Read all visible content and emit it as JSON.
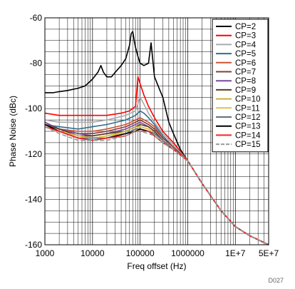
{
  "chart_data": {
    "type": "line",
    "title": "",
    "xlabel": "Freq offset (Hz)",
    "ylabel": "Phase Noise (dBc)",
    "x_scale": "log",
    "xlim": [
      1000,
      50000000
    ],
    "ylim": [
      -160,
      -60
    ],
    "grid": true,
    "legend_position": "top-right",
    "watermark": "D027",
    "x_ticks": [
      {
        "value": 1000,
        "label": "1000"
      },
      {
        "value": 10000,
        "label": "10000"
      },
      {
        "value": 100000,
        "label": "100000"
      },
      {
        "value": 1000000,
        "label": "1000000"
      },
      {
        "value": 10000000,
        "label": "1E+7"
      },
      {
        "value": 50000000,
        "label": "5E+7"
      }
    ],
    "y_ticks": [
      {
        "value": -60,
        "label": "-60"
      },
      {
        "value": -80,
        "label": "-80"
      },
      {
        "value": -100,
        "label": "-100"
      },
      {
        "value": -120,
        "label": "-120"
      },
      {
        "value": -140,
        "label": "-140"
      },
      {
        "value": -160,
        "label": "-160"
      }
    ],
    "series": [
      {
        "name": "CP=2",
        "color": "#000000",
        "dash": "",
        "x": [
          1000,
          1500,
          2000,
          3000,
          5000,
          7000,
          10000,
          13000,
          15000,
          17000,
          20000,
          25000,
          30000,
          40000,
          50000,
          60000,
          65000,
          70000,
          75000,
          80000,
          90000,
          100000,
          120000,
          150000,
          170000,
          200000,
          250000,
          300000,
          400000,
          500000,
          700000,
          1000000,
          2000000,
          5000000,
          10000000,
          20000000,
          50000000
        ],
        "y": [
          -93,
          -93,
          -92.5,
          -92,
          -91,
          -90,
          -87,
          -84,
          -81,
          -84,
          -86,
          -86,
          -84,
          -81,
          -78,
          -72,
          -67,
          -66,
          -70,
          -73,
          -77,
          -80,
          -81,
          -80,
          -71,
          -86,
          -91,
          -95,
          -106,
          -111,
          -118,
          -123,
          -133,
          -145,
          -152,
          -156,
          -160
        ]
      },
      {
        "name": "CP=3",
        "color": "#ff0000",
        "dash": "",
        "x": [
          1000,
          2000,
          5000,
          10000,
          20000,
          40000,
          60000,
          80000,
          90000,
          100000,
          120000,
          150000,
          200000,
          300000,
          500000,
          1000000,
          2000000,
          5000000,
          10000000,
          20000000,
          50000000
        ],
        "y": [
          -102,
          -103,
          -103,
          -103,
          -103,
          -102,
          -101,
          -99,
          -86,
          -89,
          -94,
          -99,
          -104,
          -110,
          -115,
          -123,
          -133,
          -145,
          -152,
          -156,
          -160
        ]
      },
      {
        "name": "CP=4",
        "color": "#aaaaaa",
        "dash": "",
        "x": [
          1000,
          2000,
          5000,
          10000,
          20000,
          50000,
          80000,
          100000,
          120000,
          150000,
          200000,
          300000,
          500000,
          1000000,
          2000000,
          5000000,
          10000000,
          20000000,
          50000000
        ],
        "y": [
          -105,
          -106,
          -106,
          -106,
          -105,
          -103,
          -101,
          -95,
          -98,
          -102,
          -106,
          -111,
          -116,
          -123,
          -133,
          -145,
          -152,
          -156,
          -160
        ]
      },
      {
        "name": "CP=5",
        "color": "#2e6f8f",
        "dash": "",
        "x": [
          1000,
          2000,
          5000,
          10000,
          20000,
          50000,
          80000,
          100000,
          120000,
          150000,
          200000,
          300000,
          500000,
          1000000,
          2000000,
          5000000,
          10000000,
          20000000,
          50000000
        ],
        "y": [
          -107,
          -108,
          -109,
          -108,
          -107,
          -105,
          -103,
          -101,
          -102,
          -104,
          -107,
          -112,
          -117,
          -123,
          -133,
          -145,
          -152,
          -156,
          -160
        ]
      },
      {
        "name": "CP=6",
        "color": "#cc5533",
        "dash": "",
        "x": [
          1000,
          2000,
          5000,
          10000,
          20000,
          50000,
          80000,
          100000,
          150000,
          200000,
          300000,
          500000,
          1000000,
          2000000,
          5000000,
          10000000,
          20000000,
          50000000
        ],
        "y": [
          -106,
          -109,
          -110,
          -110,
          -109,
          -107,
          -105,
          -104,
          -106,
          -108,
          -113,
          -117,
          -123,
          -133,
          -145,
          -152,
          -156,
          -160
        ]
      },
      {
        "name": "CP=7",
        "color": "#8b3a3a",
        "dash": "",
        "x": [
          1000,
          2000,
          5000,
          10000,
          20000,
          50000,
          80000,
          100000,
          150000,
          200000,
          300000,
          500000,
          1000000,
          2000000,
          5000000,
          10000000,
          20000000,
          50000000
        ],
        "y": [
          -106,
          -109,
          -111,
          -111,
          -110,
          -108,
          -106,
          -105,
          -107,
          -109,
          -113,
          -117,
          -123,
          -133,
          -145,
          -152,
          -156,
          -160
        ]
      },
      {
        "name": "CP=8",
        "color": "#7b4a9a",
        "dash": "",
        "x": [
          1000,
          2000,
          5000,
          10000,
          20000,
          50000,
          80000,
          100000,
          150000,
          200000,
          300000,
          500000,
          1000000,
          2000000,
          5000000,
          10000000,
          20000000,
          50000000
        ],
        "y": [
          -106,
          -109,
          -111,
          -112,
          -111,
          -109,
          -107,
          -106,
          -108,
          -110,
          -114,
          -118,
          -123,
          -133,
          -145,
          -152,
          -156,
          -160
        ]
      },
      {
        "name": "CP=9",
        "color": "#5c3d1e",
        "dash": "",
        "x": [
          1000,
          2000,
          5000,
          10000,
          20000,
          50000,
          80000,
          100000,
          150000,
          200000,
          300000,
          500000,
          1000000,
          2000000,
          5000000,
          10000000,
          20000000,
          50000000
        ],
        "y": [
          -107,
          -109,
          -112,
          -112,
          -111,
          -110,
          -108,
          -107,
          -108,
          -110,
          -114,
          -118,
          -123,
          -133,
          -145,
          -152,
          -156,
          -160
        ]
      },
      {
        "name": "CP=10",
        "color": "#c9b037",
        "dash": "",
        "x": [
          1000,
          2000,
          5000,
          10000,
          20000,
          50000,
          80000,
          100000,
          150000,
          200000,
          300000,
          500000,
          1000000,
          2000000,
          5000000,
          10000000,
          20000000,
          50000000
        ],
        "y": [
          -107,
          -110,
          -112,
          -113,
          -112,
          -110,
          -108,
          -108,
          -109,
          -111,
          -114,
          -118,
          -123,
          -133,
          -145,
          -152,
          -156,
          -160
        ]
      },
      {
        "name": "CP=11",
        "color": "#e0c050",
        "dash": "",
        "x": [
          1000,
          2000,
          5000,
          10000,
          20000,
          50000,
          80000,
          100000,
          150000,
          200000,
          300000,
          500000,
          1000000,
          2000000,
          5000000,
          10000000,
          20000000,
          50000000
        ],
        "y": [
          -107,
          -110,
          -112,
          -113,
          -112,
          -111,
          -109,
          -108,
          -109,
          -111,
          -114,
          -118,
          -123,
          -133,
          -145,
          -152,
          -156,
          -160
        ]
      },
      {
        "name": "CP=12",
        "color": "#607080",
        "dash": "",
        "x": [
          1000,
          2000,
          5000,
          10000,
          20000,
          50000,
          80000,
          100000,
          150000,
          200000,
          300000,
          500000,
          1000000,
          2000000,
          5000000,
          10000000,
          20000000,
          50000000
        ],
        "y": [
          -107,
          -110,
          -113,
          -113,
          -113,
          -111,
          -109,
          -109,
          -110,
          -111,
          -114,
          -118,
          -123,
          -133,
          -145,
          -152,
          -156,
          -160
        ]
      },
      {
        "name": "CP=13",
        "color": "#000000",
        "dash": "",
        "x": [
          1000,
          2000,
          5000,
          10000,
          20000,
          50000,
          80000,
          100000,
          150000,
          200000,
          300000,
          500000,
          1000000,
          2000000,
          5000000,
          10000000,
          20000000,
          50000000
        ],
        "y": [
          -107,
          -110,
          -113,
          -114,
          -113,
          -111,
          -110,
          -109,
          -110,
          -112,
          -115,
          -118,
          -123,
          -133,
          -145,
          -152,
          -156,
          -160
        ]
      },
      {
        "name": "CP=14",
        "color": "#ff2222",
        "dash": "",
        "x": [
          1000,
          2000,
          5000,
          10000,
          20000,
          50000,
          80000,
          100000,
          150000,
          200000,
          300000,
          500000,
          1000000,
          2000000,
          5000000,
          10000000,
          20000000,
          50000000
        ],
        "y": [
          -108,
          -110,
          -113,
          -114,
          -113,
          -112,
          -110,
          -110,
          -110,
          -112,
          -115,
          -118,
          -123,
          -133,
          -145,
          -152,
          -156,
          -160
        ]
      },
      {
        "name": "CP=15",
        "color": "#999999",
        "dash": "6,3",
        "x": [
          1000,
          2000,
          5000,
          10000,
          20000,
          50000,
          80000,
          100000,
          150000,
          200000,
          300000,
          500000,
          1000000,
          2000000,
          5000000,
          10000000,
          20000000,
          50000000
        ],
        "y": [
          -108,
          -111,
          -114,
          -114,
          -114,
          -112,
          -110,
          -110,
          -111,
          -112,
          -115,
          -118,
          -123,
          -133,
          -145,
          -152,
          -156,
          -160
        ]
      }
    ]
  }
}
